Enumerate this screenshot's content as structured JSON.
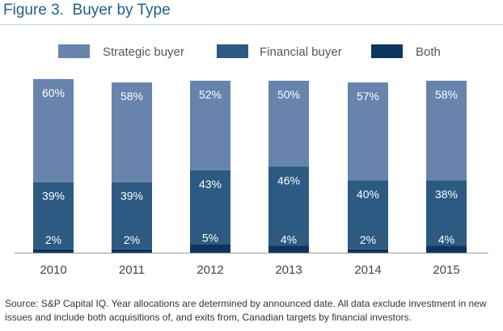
{
  "figure": {
    "title": "Figure 3.  Buyer by Type",
    "source": "Source: S&P Capital IQ. Year allocations are determined by announced date. All data exclude investment in new issues and include both acquisitions of, and exits from, Canadian targets by financial investors."
  },
  "chart_data": {
    "type": "bar",
    "stacked": true,
    "title": "Buyer by Type",
    "categories": [
      "2010",
      "2011",
      "2012",
      "2013",
      "2014",
      "2015"
    ],
    "series": [
      {
        "name": "Both",
        "values": [
          2,
          2,
          5,
          4,
          2,
          4
        ],
        "labels": [
          "2%",
          "2%",
          "5%",
          "4%",
          "2%",
          "4%"
        ],
        "color": "#0d3560"
      },
      {
        "name": "Financial buyer",
        "values": [
          39,
          39,
          43,
          46,
          40,
          38
        ],
        "labels": [
          "39%",
          "39%",
          "43%",
          "46%",
          "40%",
          "38%"
        ],
        "color": "#2c5a82"
      },
      {
        "name": "Strategic buyer",
        "values": [
          60,
          58,
          52,
          50,
          57,
          58
        ],
        "labels": [
          "60%",
          "58%",
          "52%",
          "50%",
          "57%",
          "58%"
        ],
        "color": "#6884ad"
      }
    ],
    "legend_order": [
      "Strategic buyer",
      "Financial buyer",
      "Both"
    ],
    "legend_position": "top",
    "ylim": [
      0,
      100
    ],
    "grid": false,
    "xlabel": "",
    "ylabel": ""
  }
}
